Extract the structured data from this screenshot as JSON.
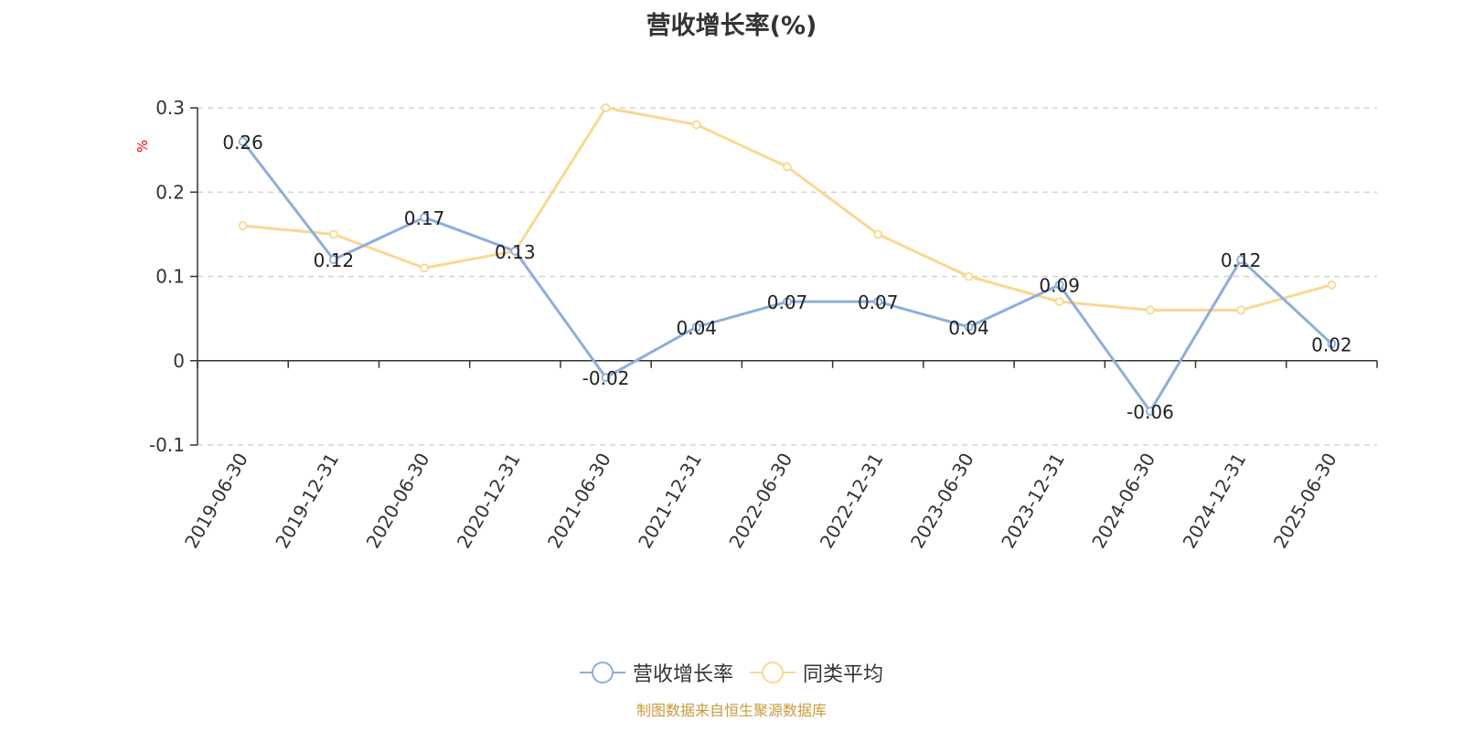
{
  "chart_data": {
    "type": "line",
    "title": "营收增长率(%)",
    "ylabel": "%",
    "xlabel": "",
    "ylim": [
      -0.1,
      0.3
    ],
    "yticks": [
      -0.1,
      0,
      0.1,
      0.2,
      0.3
    ],
    "ytick_labels": [
      "-0.1",
      "0",
      "0.1",
      "0.2",
      "0.3"
    ],
    "grid": true,
    "legend_position": "bottom-center",
    "categories": [
      "2019-06-30",
      "2019-12-31",
      "2020-06-30",
      "2020-12-31",
      "2021-06-30",
      "2021-12-31",
      "2022-06-30",
      "2022-12-31",
      "2023-06-30",
      "2023-12-31",
      "2024-06-30",
      "2024-12-31",
      "2025-06-30"
    ],
    "series": [
      {
        "name": "营收增长率",
        "color": "#8eaedb",
        "values": [
          0.26,
          0.12,
          0.17,
          0.13,
          -0.02,
          0.04,
          0.07,
          0.07,
          0.04,
          0.09,
          -0.06,
          0.12,
          0.02
        ],
        "data_labels": [
          "0.26",
          "0.12",
          "0.17",
          "0.13",
          "-0.02",
          "0.04",
          "0.07",
          "0.07",
          "0.04",
          "0.09",
          "-0.06",
          "0.12",
          "0.02"
        ]
      },
      {
        "name": "同类平均",
        "color": "#fad891",
        "values": [
          0.16,
          0.15,
          0.11,
          0.13,
          0.3,
          0.28,
          0.23,
          0.15,
          0.1,
          0.07,
          0.06,
          0.06,
          0.09
        ]
      }
    ]
  },
  "source_note": "制图数据来自恒生聚源数据库",
  "colors": {
    "axis": "#333333",
    "grid": "#cccccc",
    "ylabel": "#ff0000",
    "source_note": "#c89a3c"
  }
}
